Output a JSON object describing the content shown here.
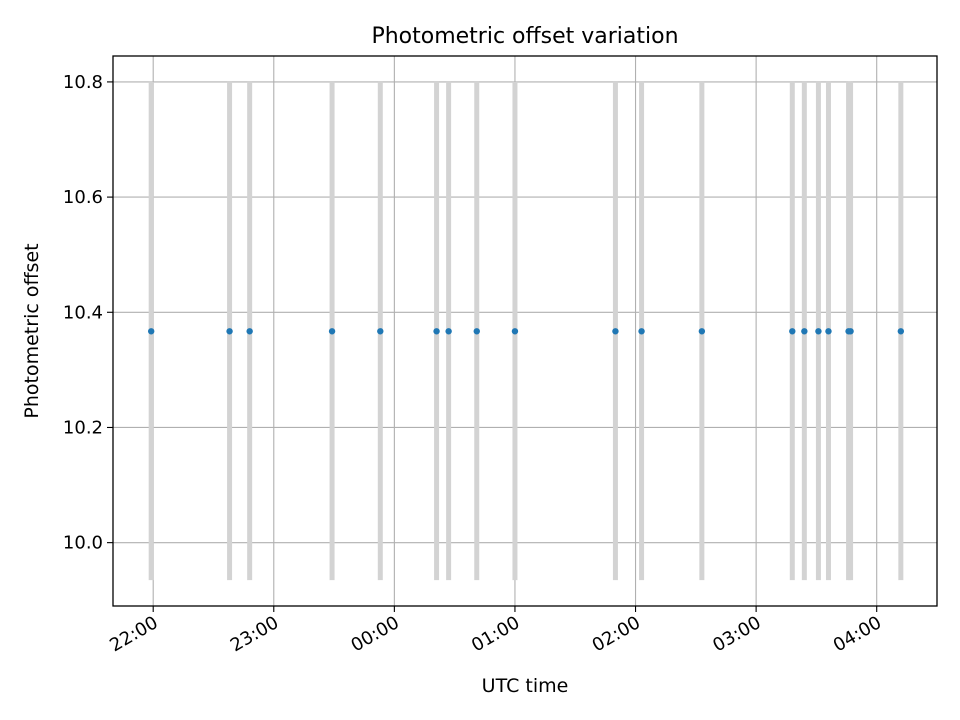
{
  "chart_data": {
    "type": "scatter",
    "title": "Photometric offset variation",
    "xlabel": "UTC time",
    "ylabel": "Photometric offset",
    "x_ticks": [
      "22:00",
      "23:00",
      "00:00",
      "01:00",
      "02:00",
      "03:00",
      "04:00"
    ],
    "y_ticks": [
      "10.0",
      "10.2",
      "10.4",
      "10.6",
      "10.8"
    ],
    "ylim": [
      9.89,
      10.845
    ],
    "x_range": [
      "21:40",
      "04:30"
    ],
    "grid": true,
    "series": [
      {
        "marker_color": "#1f77b4",
        "points": [
          {
            "x": "21:59",
            "y": 10.367
          },
          {
            "x": "22:38",
            "y": 10.367
          },
          {
            "x": "22:48",
            "y": 10.367
          },
          {
            "x": "23:29",
            "y": 10.367
          },
          {
            "x": "23:53",
            "y": 10.367
          },
          {
            "x": "00:21",
            "y": 10.367
          },
          {
            "x": "00:27",
            "y": 10.367
          },
          {
            "x": "00:41",
            "y": 10.367
          },
          {
            "x": "01:00",
            "y": 10.367
          },
          {
            "x": "01:50",
            "y": 10.367
          },
          {
            "x": "02:03",
            "y": 10.367
          },
          {
            "x": "02:33",
            "y": 10.367
          },
          {
            "x": "03:18",
            "y": 10.367
          },
          {
            "x": "03:24",
            "y": 10.367
          },
          {
            "x": "03:31",
            "y": 10.367
          },
          {
            "x": "03:36",
            "y": 10.367
          },
          {
            "x": "03:46",
            "y": 10.367
          },
          {
            "x": "03:47",
            "y": 10.367
          },
          {
            "x": "04:12",
            "y": 10.367
          }
        ]
      }
    ],
    "vertical_bands": {
      "color": "#d3d3d3",
      "y_range": [
        9.935,
        10.8
      ],
      "x": [
        "21:59",
        "22:38",
        "22:48",
        "23:29",
        "23:53",
        "00:21",
        "00:27",
        "00:41",
        "01:00",
        "01:50",
        "02:03",
        "02:33",
        "03:18",
        "03:24",
        "03:31",
        "03:36",
        "03:46",
        "03:47",
        "04:12"
      ]
    }
  }
}
